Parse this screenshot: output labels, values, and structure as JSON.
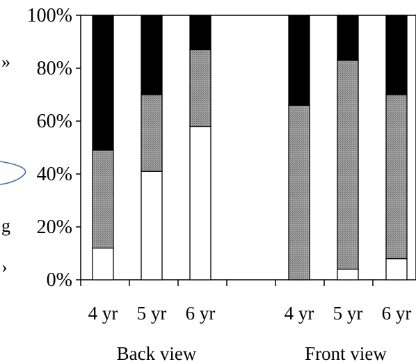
{
  "chart_data": {
    "type": "bar",
    "stacked": true,
    "normalized": true,
    "title": "",
    "xlabel": "",
    "ylabel": "",
    "ylim": [
      0,
      100
    ],
    "yticks": [
      "0%",
      "20%",
      "40%",
      "60%",
      "80%",
      "100%"
    ],
    "grid": false,
    "legend": "none",
    "groups": [
      {
        "label": "Back view",
        "categories": [
          "4 yr",
          "5 yr",
          "6 yr"
        ],
        "series": [
          {
            "values": [
              12,
              41,
              58
            ],
            "color": "#ffffff"
          },
          {
            "values": [
              37,
              29,
              29
            ],
            "color": "#8c8c8c"
          },
          {
            "values": [
              51,
              30,
              13
            ],
            "color": "#000000"
          }
        ]
      },
      {
        "label": "Front view",
        "categories": [
          "4 yr",
          "5 yr",
          "6 yr"
        ],
        "series": [
          {
            "values": [
              0,
              4,
              8
            ],
            "color": "#ffffff"
          },
          {
            "values": [
              66,
              79,
              62
            ],
            "color": "#8c8c8c"
          },
          {
            "values": [
              34,
              17,
              30
            ],
            "color": "#000000"
          }
        ]
      }
    ]
  },
  "edge_text": {
    "left_top": "»",
    "left_middle": "g",
    "left_bottom": "›"
  },
  "colors": {
    "callout_stroke": "#3b6fb6"
  }
}
